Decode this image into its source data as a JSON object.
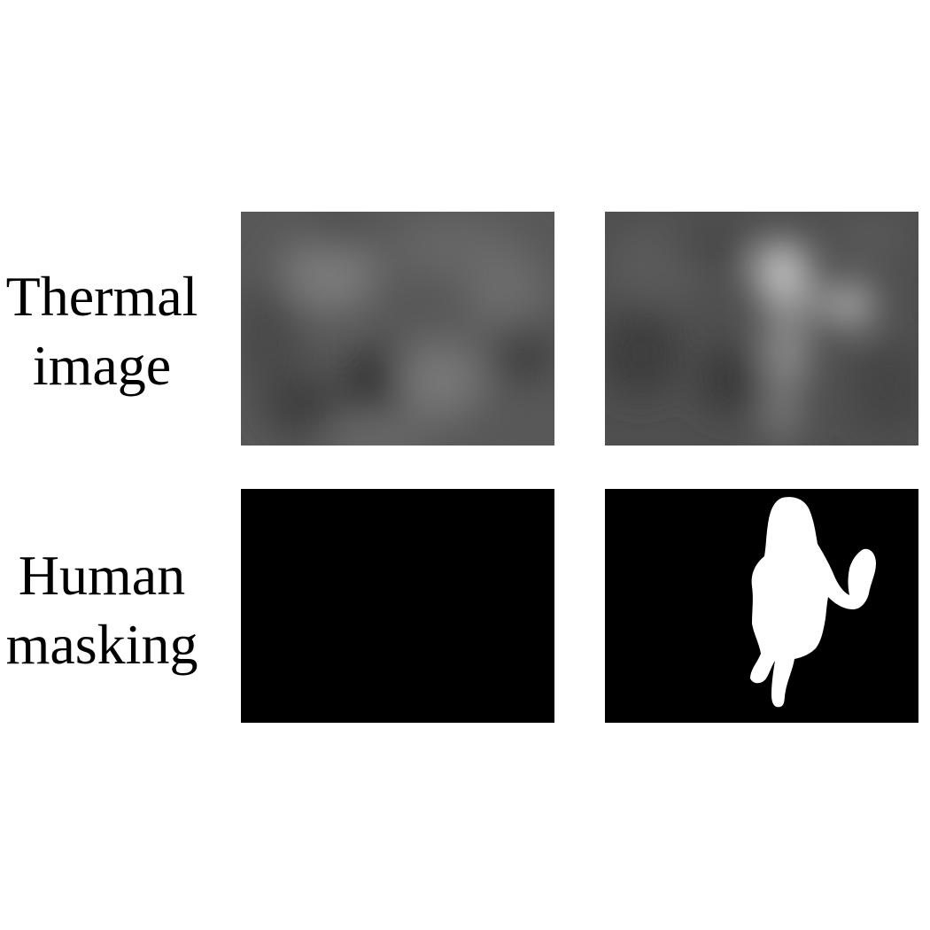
{
  "rows": [
    {
      "label_lines": [
        "Thermal",
        "image"
      ]
    },
    {
      "label_lines": [
        "Human",
        "masking"
      ]
    }
  ],
  "colors": {
    "background": "#ffffff",
    "thermal_base": "#555555",
    "mask_background": "#000000",
    "mask_foreground": "#ffffff"
  }
}
